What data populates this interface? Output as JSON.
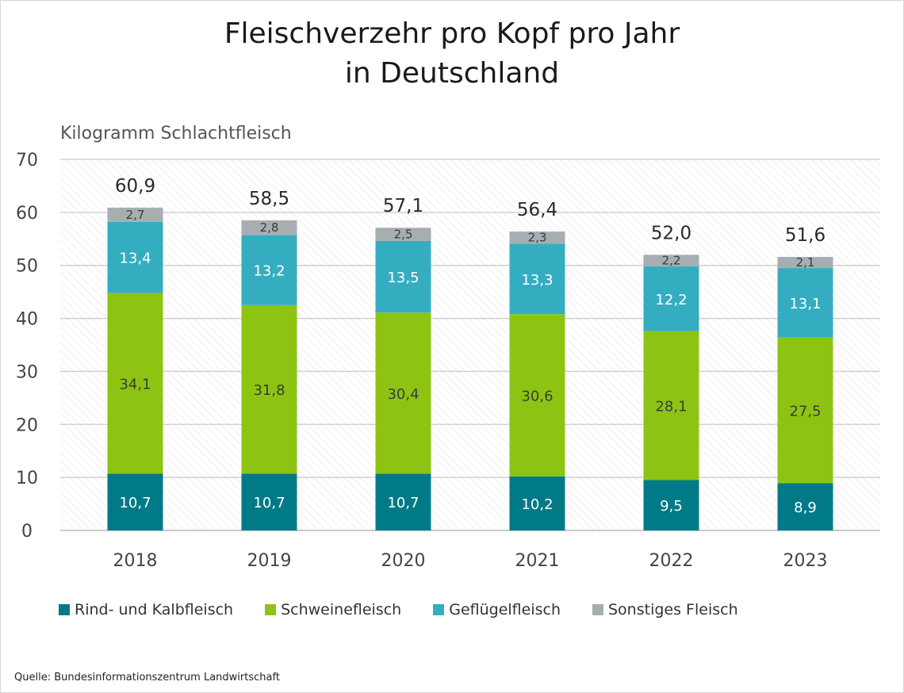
{
  "title_line1": "Fleischverzehr pro Kopf pro Jahr",
  "title_line2": "in Deutschland",
  "unit_label": "Kilogramm Schlachtfleisch",
  "source": "Quelle: Bundesinformationszentrum Landwirtschaft",
  "chart_data": {
    "type": "bar",
    "stacked": true,
    "title": "Fleischverzehr pro Kopf pro Jahr in Deutschland",
    "ylabel": "Kilogramm Schlachtfleisch",
    "xlabel": "",
    "ylim": [
      0,
      70
    ],
    "yticks": [
      "0",
      "10",
      "20",
      "30",
      "40",
      "50",
      "60",
      "70"
    ],
    "grid": true,
    "categories": [
      "2018",
      "2019",
      "2020",
      "2021",
      "2022",
      "2023"
    ],
    "series": [
      {
        "name": "Rind- und Kalbfleisch",
        "color": "#007a87",
        "label_color": "#ffffff",
        "values": [
          10.7,
          10.7,
          10.7,
          10.2,
          9.5,
          8.9
        ],
        "labels": [
          "10,7",
          "10,7",
          "10,7",
          "10,2",
          "9,5",
          "8,9"
        ]
      },
      {
        "name": "Schweinefleisch",
        "color": "#8dc413",
        "label_color": "#3a3a3a",
        "values": [
          34.1,
          31.8,
          30.4,
          30.6,
          28.1,
          27.5
        ],
        "labels": [
          "34,1",
          "31,8",
          "30,4",
          "30,6",
          "28,1",
          "27,5"
        ]
      },
      {
        "name": "Geflügelfleisch",
        "color": "#35adc0",
        "label_color": "#ffffff",
        "values": [
          13.4,
          13.2,
          13.5,
          13.3,
          12.2,
          13.1
        ],
        "labels": [
          "13,4",
          "13,2",
          "13,5",
          "13,3",
          "12,2",
          "13,1"
        ]
      },
      {
        "name": "Sonstiges Fleisch",
        "color": "#a6aeb1",
        "label_color": "#3a3a3a",
        "values": [
          2.7,
          2.8,
          2.5,
          2.3,
          2.2,
          2.1
        ],
        "labels": [
          "2,7",
          "2,8",
          "2,5",
          "2,3",
          "2,2",
          "2,1"
        ]
      }
    ],
    "totals": [
      60.9,
      58.5,
      57.1,
      56.4,
      52.0,
      51.6
    ],
    "total_labels": [
      "60,9",
      "58,5",
      "57,1",
      "56,4",
      "52,0",
      "51,6"
    ],
    "legend_position": "bottom-left"
  }
}
